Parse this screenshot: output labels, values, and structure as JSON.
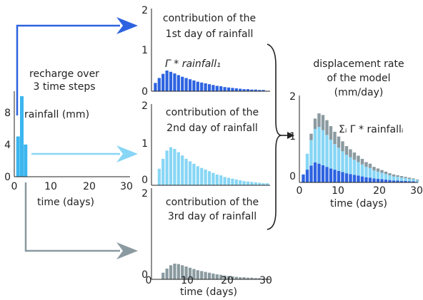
{
  "colors": {
    "day1": "#2d63e0",
    "day2": "#87d6f5",
    "day3": "#8a9aa0",
    "rain_bar": "#3bb6ef",
    "rain_bar_low": "#1f4fbf"
  },
  "rainfall_panel": {
    "caption": [
      "recharge over",
      "3 time steps"
    ],
    "ylabel": "rainfall (mm)",
    "xlabel": "time (days)",
    "yticks": [
      "0",
      "4",
      "8"
    ],
    "xticks": [
      "0",
      "10",
      "20",
      "30"
    ]
  },
  "panel_day1": {
    "caption": [
      "contribution of the",
      "1st day of rainfall"
    ],
    "formula": "Γ * rainfall₁",
    "yticks": [
      "0",
      "1",
      "2"
    ]
  },
  "panel_day2": {
    "caption": [
      "contribution of the",
      "2nd day of rainfall"
    ],
    "yticks": [
      "0",
      "1",
      "2"
    ]
  },
  "panel_day3": {
    "caption": [
      "contribution of the",
      "3rd day of rainfall"
    ],
    "yticks": [
      "0",
      "2"
    ],
    "xlabel": "time (days)",
    "xticks": [
      "0",
      "10",
      "20",
      "30"
    ]
  },
  "result_panel": {
    "caption": [
      "displacement rate",
      "of the model",
      "(mm/day)"
    ],
    "formula": "Σᵢ Γ * rainfallᵢ",
    "yticks": [
      "0",
      "1",
      "2"
    ],
    "xlabel": "time (days)",
    "xticks": [
      "0",
      "10",
      "20",
      "30"
    ]
  },
  "chart_data": [
    {
      "type": "bar",
      "name": "rainfall",
      "x": [
        1,
        2,
        3
      ],
      "values": [
        5,
        10,
        4
      ],
      "xlim": [
        0,
        30
      ],
      "ylim": [
        0,
        10
      ]
    },
    {
      "type": "bar",
      "name": "day1",
      "x": [
        1,
        2,
        3,
        4,
        5,
        6,
        7,
        8,
        9,
        10,
        11,
        12,
        13,
        14,
        15,
        16,
        17,
        18,
        19,
        20,
        21,
        22,
        23,
        24,
        25,
        26,
        27,
        28,
        29
      ],
      "values": [
        0.2,
        0.32,
        0.42,
        0.5,
        0.47,
        0.43,
        0.39,
        0.35,
        0.32,
        0.29,
        0.26,
        0.23,
        0.21,
        0.19,
        0.17,
        0.15,
        0.13,
        0.12,
        0.1,
        0.09,
        0.08,
        0.07,
        0.06,
        0.05,
        0.05,
        0.04,
        0.04,
        0.03,
        0.03
      ],
      "ylim": [
        0,
        2
      ]
    },
    {
      "type": "bar",
      "name": "day2",
      "x": [
        2,
        3,
        4,
        5,
        6,
        7,
        8,
        9,
        10,
        11,
        12,
        13,
        14,
        15,
        16,
        17,
        18,
        19,
        20,
        21,
        22,
        23,
        24,
        25,
        26,
        27,
        28,
        29,
        30
      ],
      "values": [
        0.4,
        0.64,
        0.84,
        0.92,
        0.88,
        0.8,
        0.72,
        0.64,
        0.58,
        0.52,
        0.46,
        0.42,
        0.38,
        0.34,
        0.3,
        0.26,
        0.24,
        0.2,
        0.18,
        0.16,
        0.14,
        0.12,
        0.1,
        0.09,
        0.08,
        0.07,
        0.06,
        0.05,
        0.05
      ],
      "ylim": [
        0,
        2
      ]
    },
    {
      "type": "bar",
      "name": "day3",
      "x": [
        3,
        4,
        5,
        6,
        7,
        8,
        9,
        10,
        11,
        12,
        13,
        14,
        15,
        16,
        17,
        18,
        19,
        20,
        21,
        22,
        23,
        24,
        25,
        26,
        27,
        28,
        29,
        30
      ],
      "values": [
        0.16,
        0.26,
        0.34,
        0.38,
        0.37,
        0.34,
        0.31,
        0.28,
        0.25,
        0.22,
        0.2,
        0.18,
        0.16,
        0.14,
        0.12,
        0.11,
        0.09,
        0.08,
        0.07,
        0.06,
        0.05,
        0.05,
        0.04,
        0.04,
        0.03,
        0.03,
        0.02,
        0.02
      ],
      "ylim": [
        0,
        2
      ]
    },
    {
      "type": "bar",
      "name": "sum",
      "stacked": true,
      "series_order": [
        "day1",
        "day2",
        "day3"
      ],
      "xlim": [
        0,
        30
      ],
      "ylim": [
        0,
        2
      ]
    }
  ]
}
